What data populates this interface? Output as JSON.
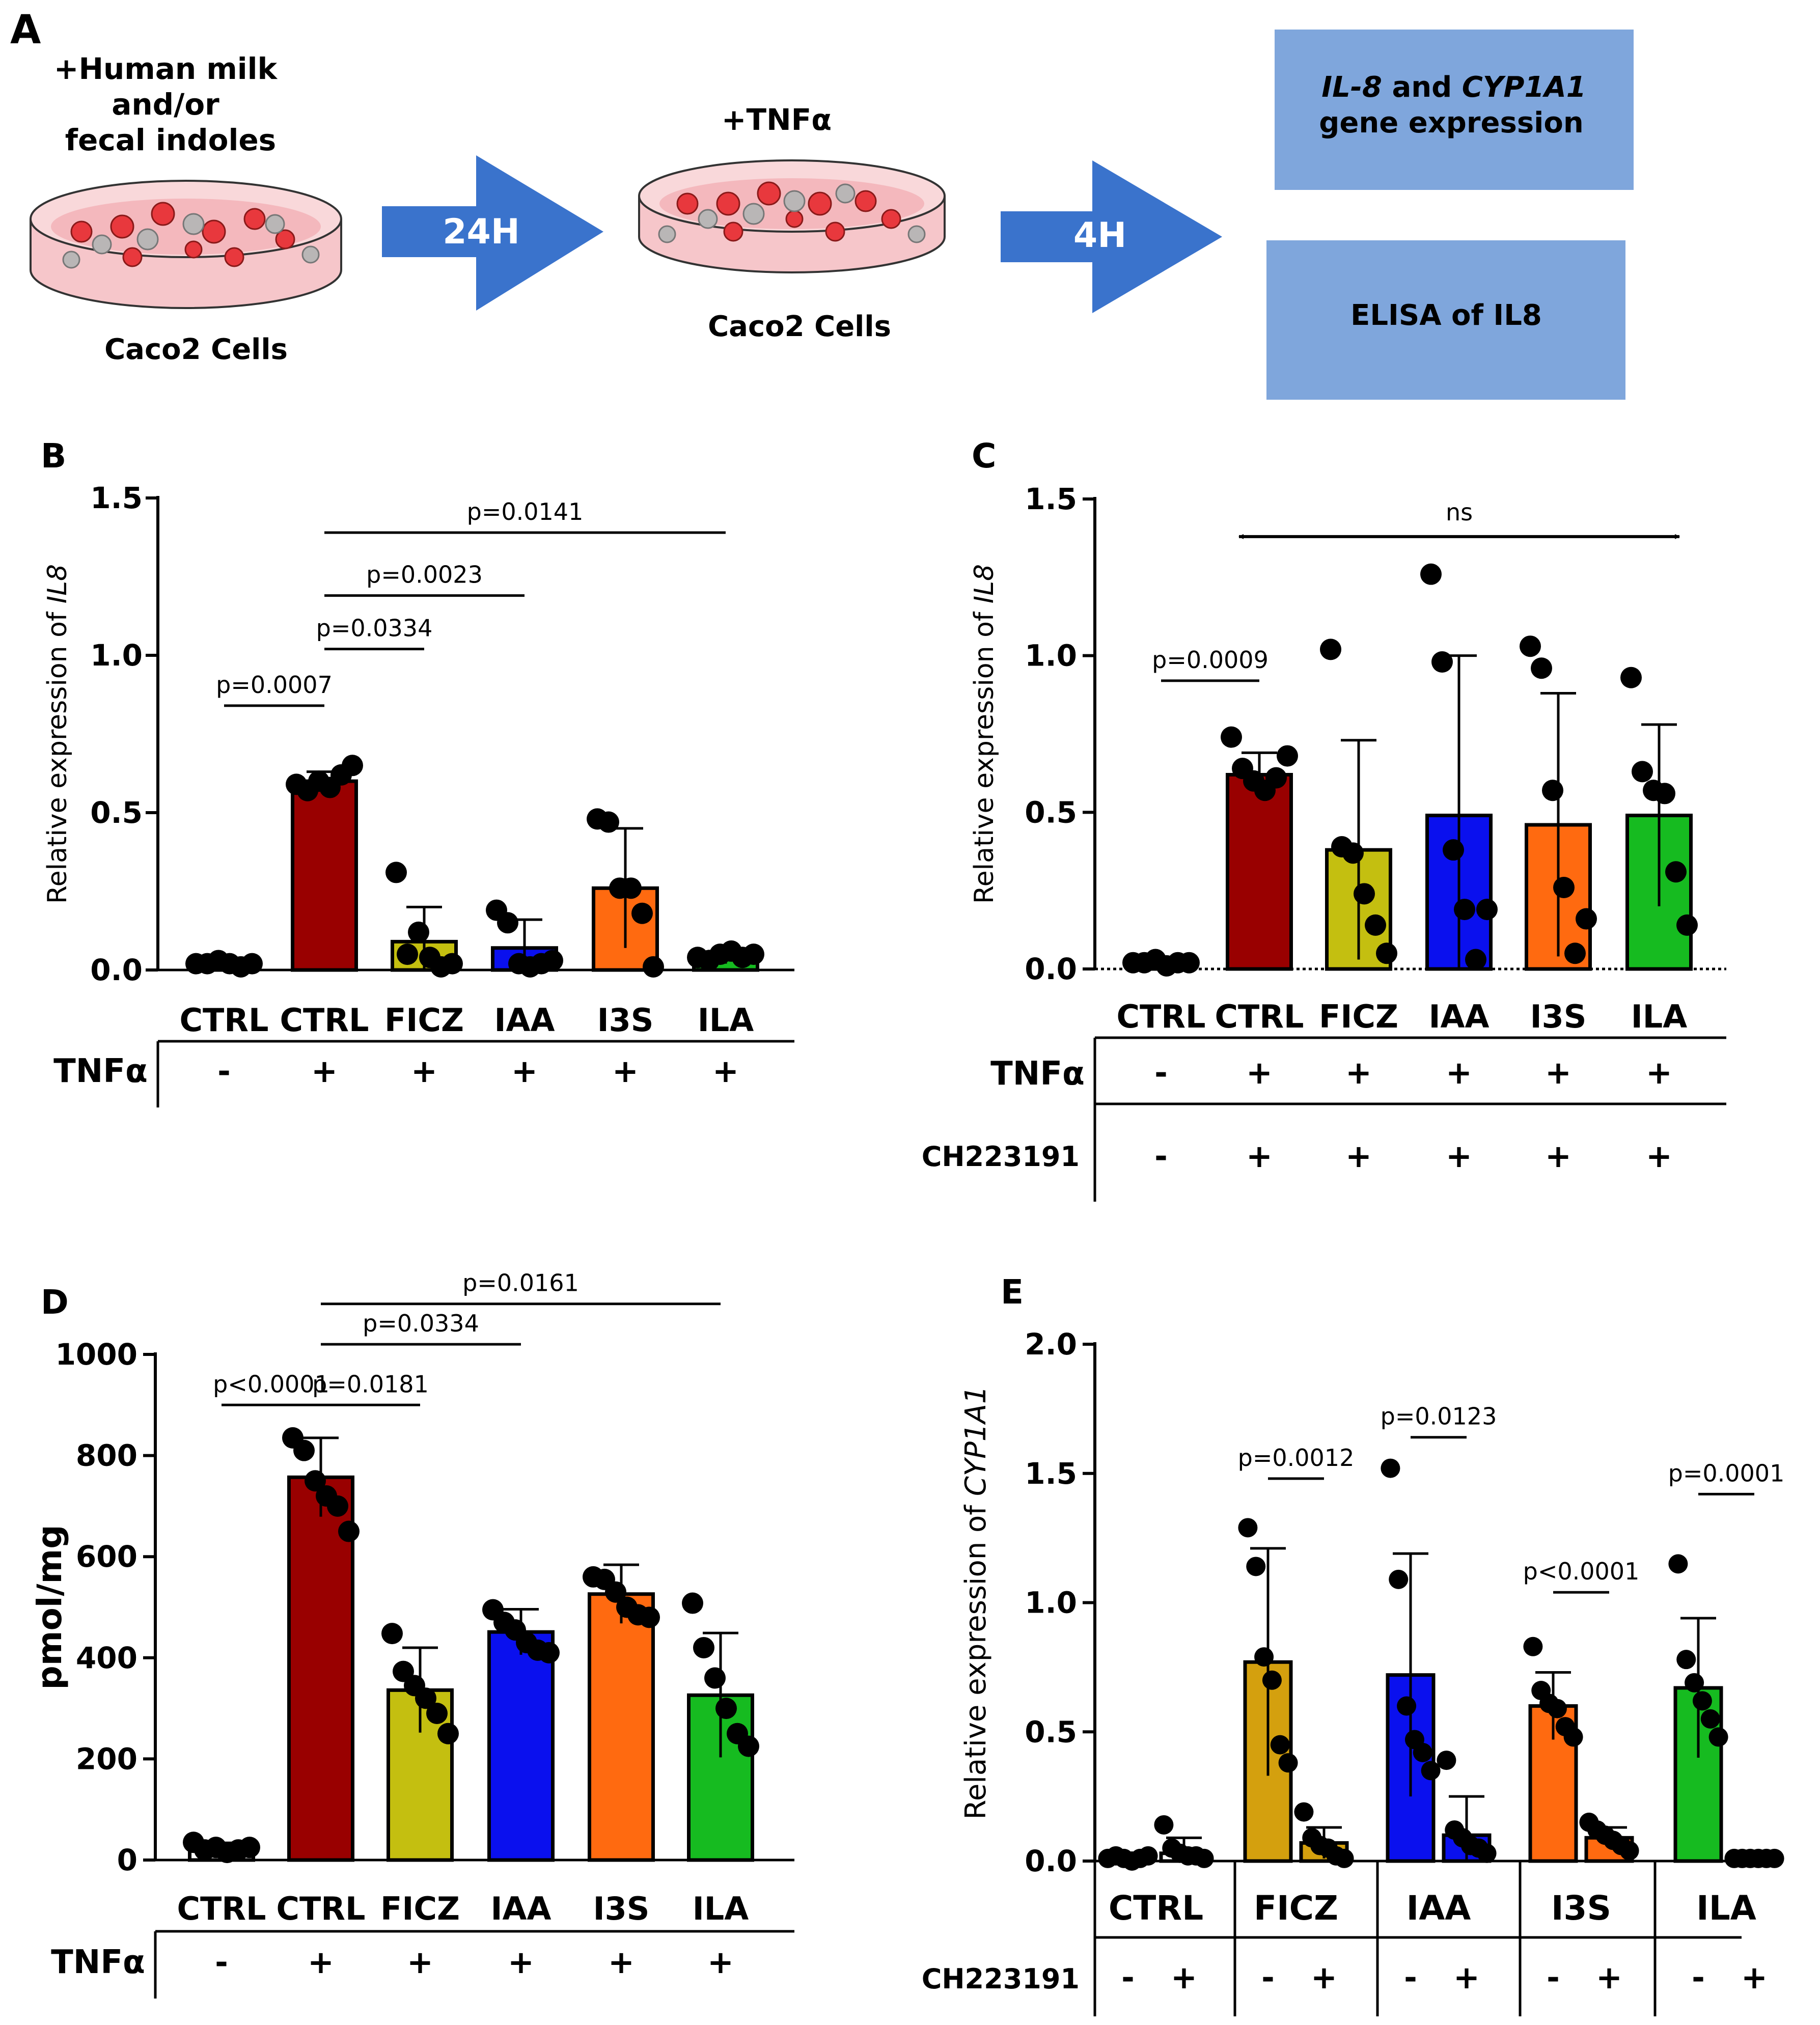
{
  "colors": {
    "ctrl": "#ffffff",
    "ctrl_tnf": "#990000",
    "ficz": "#c4bf10",
    "ficz_e": "#d4a00e",
    "iaa": "#0a10ee",
    "i3s": "#ff6a10",
    "ila": "#16bb20",
    "box": "#7fa6dc",
    "arrow": "#3a73cc",
    "dish": "#f6cfd2"
  },
  "panelA": {
    "label": "A",
    "treat": [
      "+Human milk",
      "and/or",
      "fecal indoles"
    ],
    "cells1": "Caco2 Cells",
    "arrow1": "24H",
    "tnf": "+TNFα",
    "cells2": "Caco2 Cells",
    "arrow2": "4H",
    "box1_part1": "IL-8",
    "box1_and": " and ",
    "box1_part2": "CYP1A1",
    "box1_line2": "gene expression",
    "box2": "ELISA of IL8"
  },
  "tables": {
    "B": {
      "tnf_label": "TNFα",
      "tnf": [
        "-",
        "+",
        "+",
        "+",
        "+",
        "+"
      ]
    },
    "C": {
      "tnf_label": "TNFα",
      "tnf": [
        "-",
        "+",
        "+",
        "+",
        "+",
        "+"
      ],
      "ch_label": "CH223191",
      "ch": [
        "-",
        "+",
        "+",
        "+",
        "+",
        "+"
      ]
    },
    "D": {
      "tnf_label": "TNFα",
      "tnf": [
        "-",
        "+",
        "+",
        "+",
        "+",
        "+"
      ]
    },
    "E": {
      "ch_label": "CH223191",
      "ch": [
        "-",
        "+",
        "-",
        "+",
        "-",
        "+",
        "-",
        "+",
        "-",
        "+"
      ]
    }
  },
  "chart_data": [
    {
      "panel": "B",
      "type": "bar",
      "ylabel_prefix": "Relative expression of ",
      "ylabel_gene": "IL8",
      "ylim": [
        0,
        1.5
      ],
      "yticks": [
        "0.0",
        "0.5",
        "1.0",
        "1.5"
      ],
      "ytick_values": [
        0,
        0.5,
        1.0,
        1.5
      ],
      "categories": [
        "CTRL",
        "CTRL",
        "FICZ",
        "IAA",
        "I3S",
        "ILA"
      ],
      "values": [
        0.02,
        0.6,
        0.09,
        0.07,
        0.26,
        0.04
      ],
      "errors": [
        0.01,
        0.03,
        0.11,
        0.09,
        0.19,
        0.02
      ],
      "points": [
        [
          0.02,
          0.02,
          0.03,
          0.02,
          0.01,
          0.02
        ],
        [
          0.59,
          0.57,
          0.6,
          0.58,
          0.62,
          0.65
        ],
        [
          0.31,
          0.05,
          0.12,
          0.04,
          0.01,
          0.02
        ],
        [
          0.19,
          0.15,
          0.02,
          0.01,
          0.02,
          0.03
        ],
        [
          0.48,
          0.47,
          0.26,
          0.26,
          0.18,
          0.01
        ],
        [
          0.04,
          0.03,
          0.05,
          0.06,
          0.04,
          0.05
        ]
      ],
      "comparisons": [
        {
          "from": 0,
          "to": 1,
          "y": 0.84,
          "label": "p=0.0007"
        },
        {
          "from": 1,
          "to": 2,
          "y": 1.02,
          "label": "p=0.0334"
        },
        {
          "from": 1,
          "to": 3,
          "y": 1.19,
          "label": "p=0.0023"
        },
        {
          "from": 1,
          "to": 5,
          "y": 1.39,
          "label": "p=0.0141"
        }
      ]
    },
    {
      "panel": "C",
      "type": "bar",
      "ylabel_prefix": "Relative expression of ",
      "ylabel_gene": "IL8",
      "ylim": [
        0,
        1.5
      ],
      "yticks": [
        "0.0",
        "0.5",
        "1.0",
        "1.5"
      ],
      "ytick_values": [
        0,
        0.5,
        1.0,
        1.5
      ],
      "categories": [
        "CTRL",
        "CTRL",
        "FICZ",
        "IAA",
        "I3S",
        "ILA"
      ],
      "values": [
        0.02,
        0.62,
        0.38,
        0.49,
        0.46,
        0.49
      ],
      "errors": [
        0.01,
        0.07,
        0.35,
        0.51,
        0.42,
        0.29
      ],
      "points": [
        [
          0.02,
          0.02,
          0.03,
          0.01,
          0.02,
          0.02
        ],
        [
          0.74,
          0.64,
          0.6,
          0.57,
          0.61,
          0.68
        ],
        [
          1.02,
          0.39,
          0.37,
          0.24,
          0.14,
          0.05
        ],
        [
          1.26,
          0.98,
          0.38,
          0.19,
          0.03,
          0.19
        ],
        [
          1.03,
          0.96,
          0.57,
          0.26,
          0.05,
          0.16
        ],
        [
          0.93,
          0.63,
          0.57,
          0.56,
          0.31,
          0.14
        ]
      ],
      "comparisons": [
        {
          "from": 0,
          "to": 1,
          "y": 0.92,
          "label": "p=0.0009"
        }
      ],
      "ns_arrow": {
        "from": 1,
        "to": 5,
        "y": 1.38,
        "label": "ns"
      }
    },
    {
      "panel": "D",
      "type": "bar",
      "ylabel": "pmol/mg",
      "ylim": [
        0,
        1000
      ],
      "yticks": [
        "0",
        "200",
        "400",
        "600",
        "800",
        "1000"
      ],
      "ytick_values": [
        0,
        200,
        400,
        600,
        800,
        1000
      ],
      "categories": [
        "CTRL",
        "CTRL",
        "FICZ",
        "IAA",
        "I3S",
        "ILA"
      ],
      "values": [
        22,
        757,
        336,
        451,
        526,
        326
      ],
      "errors": [
        12,
        78,
        84,
        45,
        58,
        123
      ],
      "points": [
        [
          35,
          20,
          25,
          15,
          20,
          25
        ],
        [
          835,
          810,
          750,
          720,
          700,
          650
        ],
        [
          448,
          373,
          345,
          320,
          290,
          250
        ],
        [
          495,
          470,
          455,
          430,
          415,
          410
        ],
        [
          560,
          555,
          530,
          500,
          485,
          480
        ],
        [
          508,
          420,
          360,
          300,
          250,
          225
        ]
      ],
      "comparisons": [
        {
          "from": 0,
          "to": 1,
          "y": 900,
          "label": "p<0.0001"
        },
        {
          "from": 1,
          "to": 2,
          "y": 900,
          "label": "p=0.0181"
        },
        {
          "from": 1,
          "to": 3,
          "y": 1020,
          "label": "p=0.0334"
        },
        {
          "from": 1,
          "to": 5,
          "y": 1100,
          "label": "p=0.0161"
        }
      ]
    },
    {
      "panel": "E",
      "type": "bar",
      "ylabel_prefix": "Relative expression of ",
      "ylabel_gene": "CYP1A1",
      "ylim": [
        0,
        2.0
      ],
      "yticks": [
        "0.0",
        "0.5",
        "1.0",
        "1.5",
        "2.0"
      ],
      "ytick_values": [
        0,
        0.5,
        1.0,
        1.5,
        2.0
      ],
      "groups": [
        "CTRL",
        "FICZ",
        "IAA",
        "I3S",
        "ILA"
      ],
      "values": [
        0.01,
        0.03,
        0.77,
        0.07,
        0.72,
        0.1,
        0.6,
        0.09,
        0.67,
        0.01
      ],
      "errors": [
        0.01,
        0.06,
        0.44,
        0.06,
        0.47,
        0.15,
        0.13,
        0.04,
        0.27,
        0.01
      ],
      "points": [
        [
          0.01,
          0.02,
          0.01,
          0.0,
          0.01,
          0.02
        ],
        [
          0.14,
          0.05,
          0.03,
          0.02,
          0.02,
          0.01
        ],
        [
          1.29,
          1.14,
          0.79,
          0.7,
          0.45,
          0.38
        ],
        [
          0.19,
          0.09,
          0.06,
          0.05,
          0.02,
          0.01
        ],
        [
          1.52,
          1.09,
          0.6,
          0.47,
          0.42,
          0.35
        ],
        [
          0.39,
          0.12,
          0.09,
          0.06,
          0.05,
          0.03
        ],
        [
          0.83,
          0.66,
          0.61,
          0.59,
          0.52,
          0.48
        ],
        [
          0.15,
          0.12,
          0.1,
          0.08,
          0.06,
          0.04
        ],
        [
          1.15,
          0.78,
          0.69,
          0.62,
          0.55,
          0.48
        ],
        [
          0.01,
          0.01,
          0.01,
          0.01,
          0.01,
          0.01
        ]
      ],
      "comparisons": [
        {
          "from": 2,
          "to": 3,
          "y": 1.48,
          "label": "p=0.0012"
        },
        {
          "from": 4,
          "to": 5,
          "y": 1.64,
          "label": "p=0.0123"
        },
        {
          "from": 6,
          "to": 7,
          "y": 1.04,
          "label": "p<0.0001"
        },
        {
          "from": 8,
          "to": 9,
          "y": 1.42,
          "label": "p=0.0001"
        }
      ]
    }
  ]
}
